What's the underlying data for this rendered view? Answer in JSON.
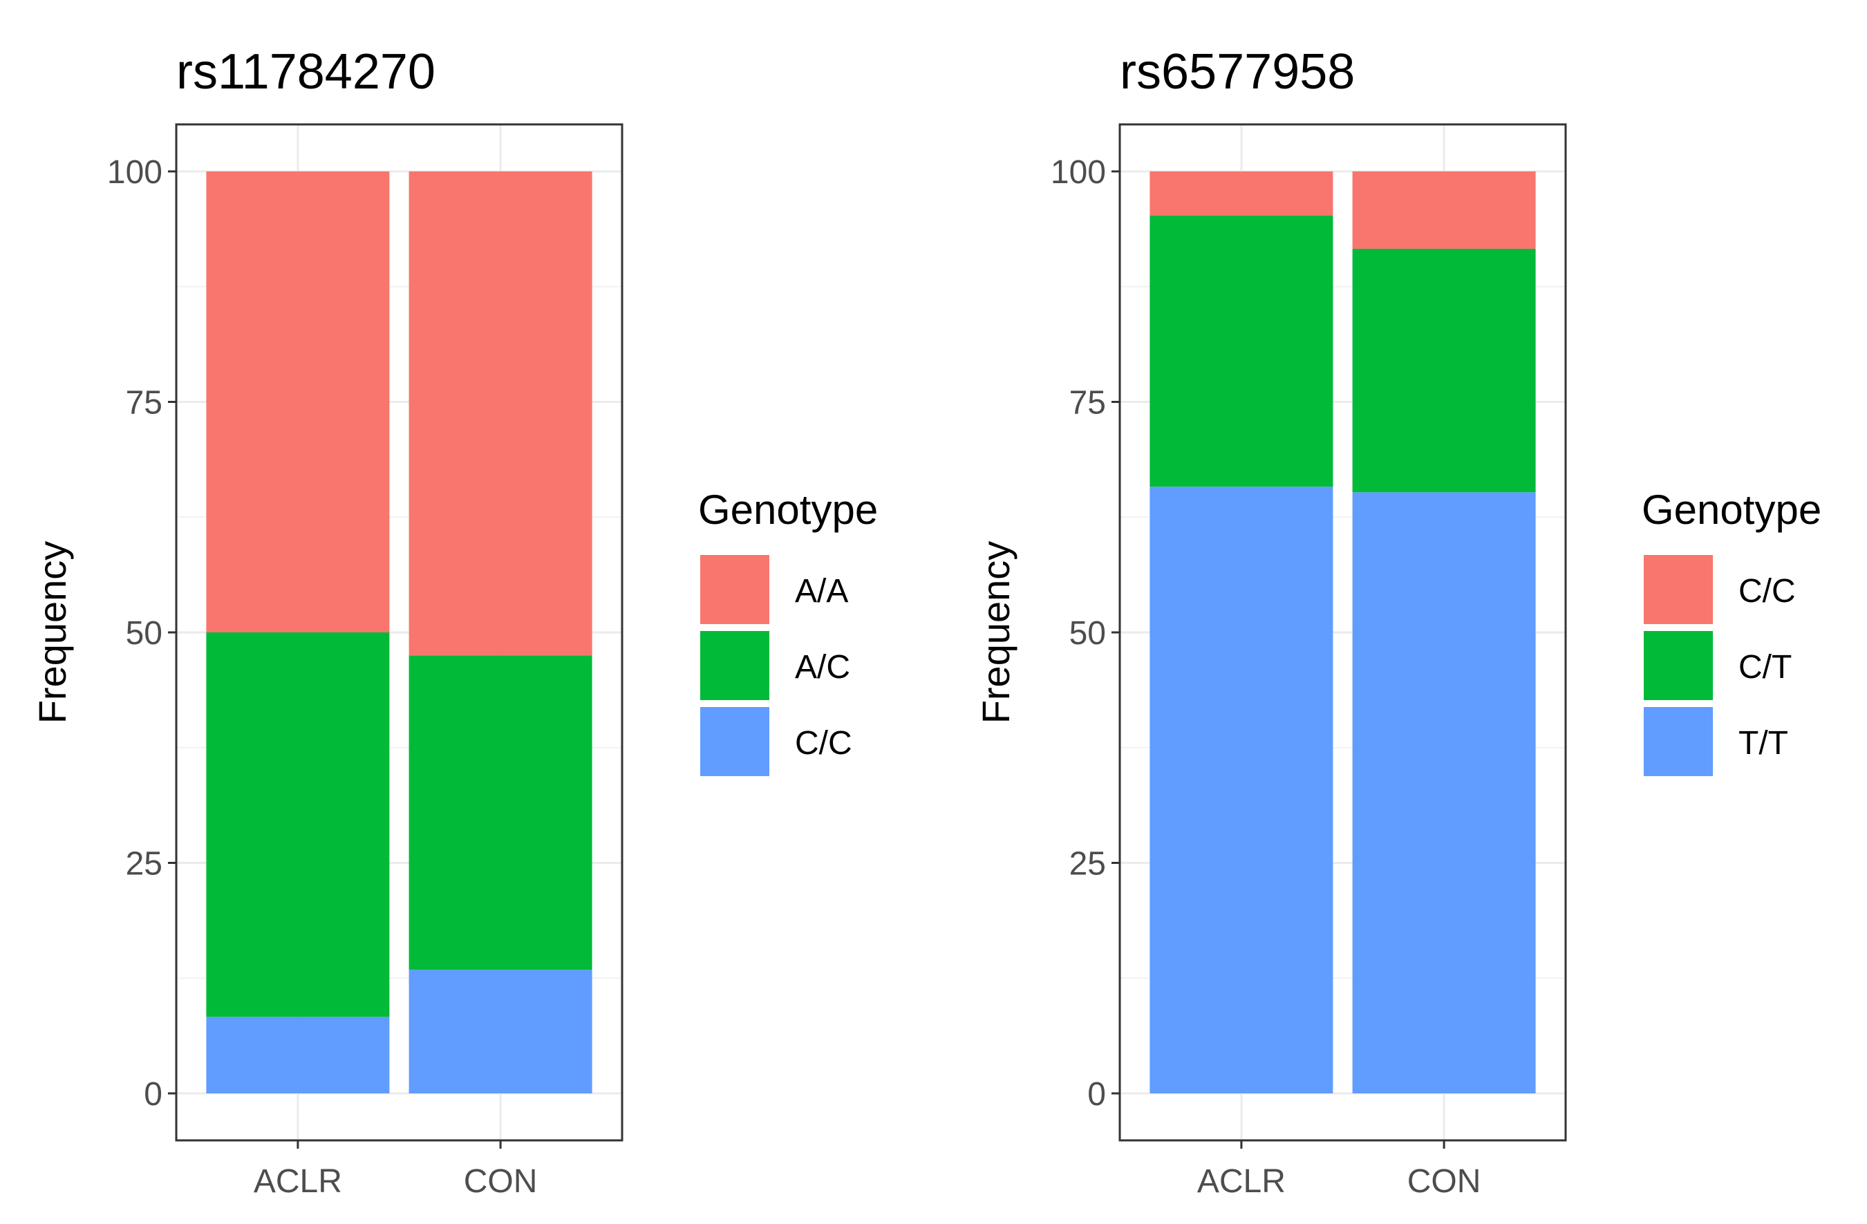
{
  "chart_data": [
    {
      "type": "bar",
      "stacked": true,
      "title": "rs11784270",
      "xlabel": "",
      "ylabel": "Frequency",
      "ylim": [
        0,
        100
      ],
      "yticks": [
        0,
        25,
        50,
        75,
        100
      ],
      "grid": true,
      "categories": [
        "ACLR",
        "CON"
      ],
      "legend": {
        "title": "Genotype",
        "position": "right",
        "items": [
          {
            "label": "A/A",
            "color": "#F8766D"
          },
          {
            "label": "A/C",
            "color": "#00BA38"
          },
          {
            "label": "C/C",
            "color": "#619CFF"
          }
        ]
      },
      "series": [
        {
          "name": "C/C",
          "color": "#619CFF",
          "values": [
            8.3,
            13.4
          ]
        },
        {
          "name": "A/C",
          "color": "#00BA38",
          "values": [
            41.7,
            34.1
          ]
        },
        {
          "name": "A/A",
          "color": "#F8766D",
          "values": [
            50.0,
            52.5
          ]
        }
      ]
    },
    {
      "type": "bar",
      "stacked": true,
      "title": "rs6577958",
      "xlabel": "",
      "ylabel": "Frequency",
      "ylim": [
        0,
        100
      ],
      "yticks": [
        0,
        25,
        50,
        75,
        100
      ],
      "grid": true,
      "categories": [
        "ACLR",
        "CON"
      ],
      "legend": {
        "title": "Genotype",
        "position": "right",
        "items": [
          {
            "label": "C/C",
            "color": "#F8766D"
          },
          {
            "label": "C/T",
            "color": "#00BA38"
          },
          {
            "label": "T/T",
            "color": "#619CFF"
          }
        ]
      },
      "series": [
        {
          "name": "T/T",
          "color": "#619CFF",
          "values": [
            65.8,
            65.2
          ]
        },
        {
          "name": "C/T",
          "color": "#00BA38",
          "values": [
            29.4,
            26.4
          ]
        },
        {
          "name": "C/C",
          "color": "#F8766D",
          "values": [
            4.8,
            8.4
          ]
        }
      ]
    }
  ]
}
